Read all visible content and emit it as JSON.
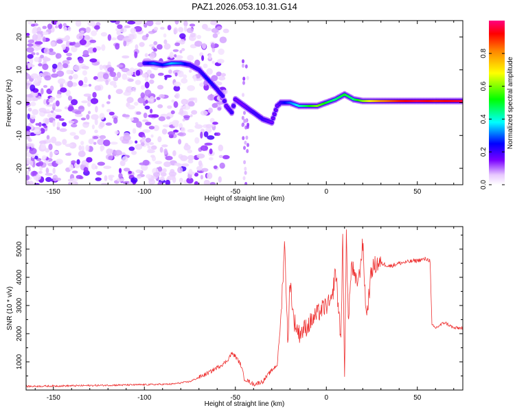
{
  "title": "PAZ1.2026.053.10.31.G14",
  "chart_data": [
    {
      "type": "heatmap",
      "xlabel": "Height of straight line (km)",
      "ylabel": "Frequency (Hz)",
      "xlim": [
        -165,
        75
      ],
      "ylim": [
        -25,
        25
      ],
      "xticks": [
        -150,
        -100,
        -50,
        0,
        50
      ],
      "yticks": [
        -20,
        -10,
        0,
        10,
        20
      ],
      "colorbar": {
        "label": "Normalized spectral amplitude",
        "range": [
          0,
          1
        ],
        "ticks": [
          0.0,
          0.2,
          0.4,
          0.6,
          0.8
        ]
      },
      "ridge": {
        "x": [
          -100,
          -95,
          -90,
          -85,
          -80,
          -75,
          -70,
          -65,
          -60,
          -57,
          -55,
          -52,
          -50,
          -45,
          -40,
          -35,
          -30,
          -27,
          -25,
          -20,
          -15,
          -10,
          -5,
          0,
          5,
          10,
          15,
          20,
          30,
          40,
          50,
          60,
          75
        ],
        "frequency": [
          12,
          12,
          11.5,
          12,
          12,
          11.5,
          10,
          7,
          4,
          2,
          -1,
          -3,
          1,
          -1,
          -3,
          -5,
          -6,
          -1,
          0,
          0,
          -1,
          -1,
          -1,
          0,
          1,
          2.5,
          1,
          0.5,
          0.5,
          0.5,
          0.5,
          0.5,
          0.5
        ],
        "amplitude": [
          0.2,
          0.3,
          0.25,
          0.35,
          0.3,
          0.2,
          0.2,
          0.25,
          0.2,
          0.2,
          0.15,
          0.2,
          0.15,
          0.15,
          0.2,
          0.2,
          0.15,
          0.15,
          0.2,
          0.3,
          0.4,
          0.5,
          0.6,
          0.5,
          0.45,
          0.5,
          0.45,
          0.6,
          0.8,
          0.9,
          0.95,
          0.9,
          0.95
        ]
      }
    },
    {
      "type": "line",
      "xlabel": "Height of straight line (km)",
      "ylabel": "SNR (10 * v/v)",
      "xlim": [
        -165,
        75
      ],
      "ylim": [
        0,
        5800
      ],
      "xticks": [
        -150,
        -100,
        -50,
        0,
        50
      ],
      "yticks": [
        1000,
        2000,
        3000,
        4000,
        5000
      ],
      "series": [
        {
          "name": "SNR",
          "color": "#ee3030",
          "x": [
            -165,
            -140,
            -120,
            -100,
            -85,
            -75,
            -65,
            -60,
            -55,
            -52,
            -50,
            -47,
            -45,
            -40,
            -35,
            -30,
            -27,
            -25,
            -23,
            -22,
            -21,
            -20,
            -18,
            -15,
            -10,
            -5,
            0,
            3,
            5,
            8,
            9,
            10,
            11,
            12,
            14,
            16,
            18,
            20,
            22,
            25,
            28,
            30,
            35,
            40,
            45,
            50,
            55,
            57,
            58,
            60,
            65,
            70,
            75
          ],
          "values": [
            130,
            150,
            170,
            190,
            210,
            300,
            600,
            800,
            1000,
            1300,
            1200,
            900,
            400,
            200,
            300,
            700,
            900,
            2500,
            5200,
            3500,
            1500,
            4000,
            2500,
            2000,
            2300,
            2700,
            3000,
            3100,
            4300,
            1800,
            5300,
            600,
            5500,
            2500,
            4500,
            3800,
            4000,
            5200,
            2600,
            4300,
            4500,
            4500,
            4400,
            4500,
            4550,
            4600,
            4650,
            4600,
            2300,
            2200,
            2400,
            2200,
            2200
          ]
        }
      ]
    }
  ]
}
